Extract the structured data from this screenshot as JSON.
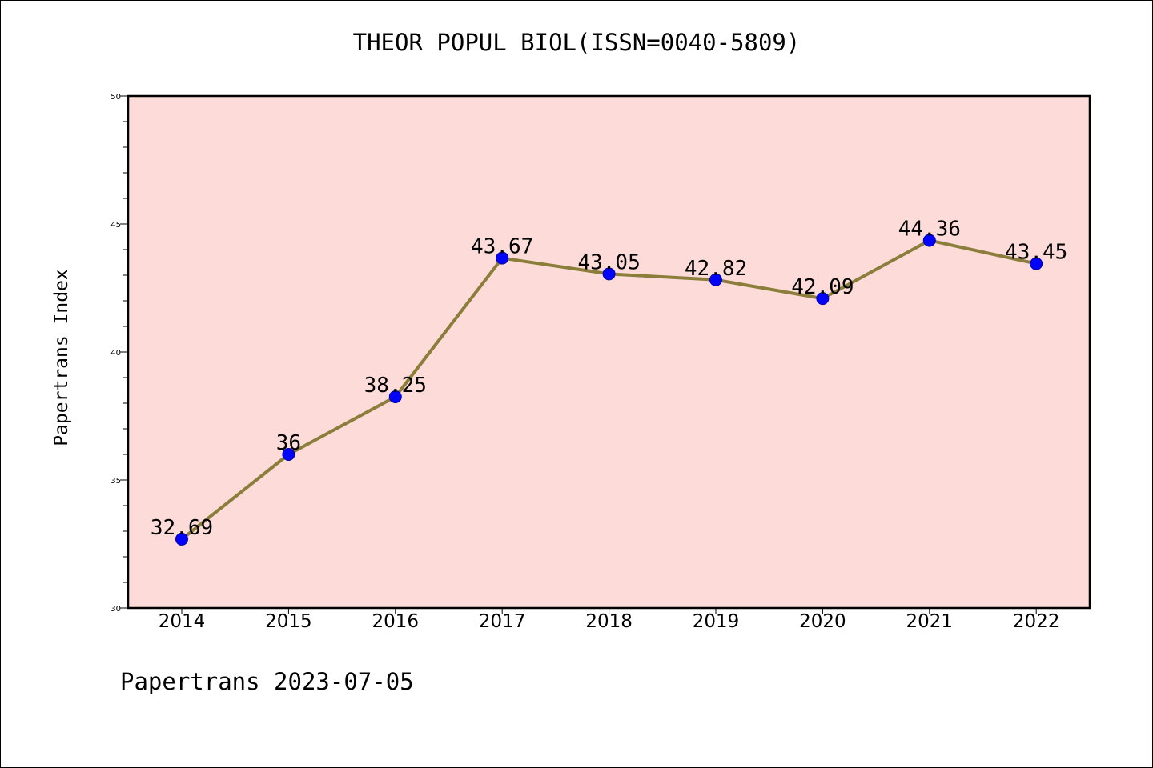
{
  "chart_data": {
    "type": "line",
    "title": "THEOR POPUL BIOL(ISSN=0040-5809)",
    "xlabel": "",
    "ylabel": "Papertrans Index",
    "categories": [
      "2014",
      "2015",
      "2016",
      "2017",
      "2018",
      "2019",
      "2020",
      "2021",
      "2022"
    ],
    "series": [
      {
        "values": [
          32.69,
          36,
          38.25,
          43.67,
          43.05,
          42.82,
          42.09,
          44.36,
          43.45
        ],
        "labels": [
          "32.69",
          "36",
          "38.25",
          "43.67",
          "43.05",
          "42.82",
          "42.09",
          "44.36",
          "43.45"
        ],
        "line_color": "#8b7d3a",
        "marker_color": "#0000ff"
      }
    ],
    "ylim": [
      30,
      50
    ],
    "y_major_ticks": [
      "30",
      "35",
      "40",
      "45",
      "50"
    ],
    "plot_background": "#fddbd9",
    "grid": false,
    "legend": "none"
  },
  "footer": "Papertrans 2023-07-05"
}
